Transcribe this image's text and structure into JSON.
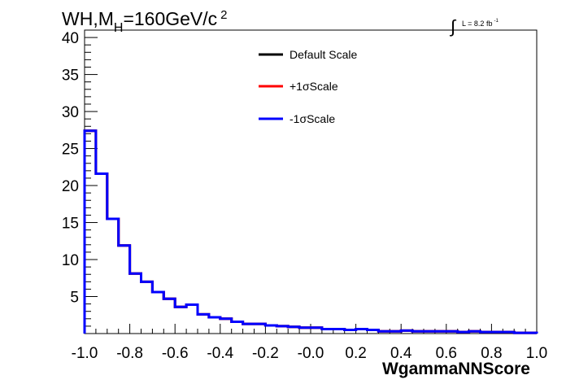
{
  "chart_data": {
    "type": "line",
    "title_main": "WH,M",
    "title_sub": "H",
    "title_rest": "=160GeV/c",
    "title_sup": "2",
    "lumi_prefix": "L = 8.2 fb",
    "lumi_sup": "-1",
    "xlabel": "WgammaNNScore",
    "xlim": [
      -1.0,
      1.0
    ],
    "ylim": [
      0,
      41
    ],
    "x_ticks": [
      {
        "value": -1.0,
        "label": "-1.0"
      },
      {
        "value": -0.8,
        "label": "-0.8"
      },
      {
        "value": -0.6,
        "label": "-0.6"
      },
      {
        "value": -0.4,
        "label": "-0.4"
      },
      {
        "value": -0.2,
        "label": "-0.2"
      },
      {
        "value": 0.0,
        "label": "-0.0"
      },
      {
        "value": 0.2,
        "label": "0.2"
      },
      {
        "value": 0.4,
        "label": "0.4"
      },
      {
        "value": 0.6,
        "label": "0.6"
      },
      {
        "value": 0.8,
        "label": "0.8"
      },
      {
        "value": 1.0,
        "label": "1.0"
      }
    ],
    "y_ticks": [
      {
        "value": 5,
        "label": "5"
      },
      {
        "value": 10,
        "label": "10"
      },
      {
        "value": 15,
        "label": "15"
      },
      {
        "value": 20,
        "label": "20"
      },
      {
        "value": 25,
        "label": "25"
      },
      {
        "value": 30,
        "label": "30"
      },
      {
        "value": 35,
        "label": "35"
      },
      {
        "value": 40,
        "label": "40"
      }
    ],
    "bin_edges": [
      -1.0,
      -0.95,
      -0.9,
      -0.85,
      -0.8,
      -0.75,
      -0.7,
      -0.65,
      -0.6,
      -0.55,
      -0.5,
      -0.45,
      -0.4,
      -0.35,
      -0.3,
      -0.25,
      -0.2,
      -0.15,
      -0.1,
      -0.05,
      0.0,
      0.05,
      0.1,
      0.15,
      0.2,
      0.25,
      0.3,
      0.35,
      0.4,
      0.45,
      0.5,
      0.55,
      0.6,
      0.65,
      0.7,
      0.75,
      0.8,
      0.85,
      0.9,
      0.95,
      1.0
    ],
    "series": [
      {
        "name": "Default Scale",
        "color": "#000000",
        "values": [
          27.4,
          21.6,
          15.5,
          11.9,
          8.1,
          7.0,
          5.6,
          4.7,
          3.6,
          3.9,
          2.6,
          2.2,
          2.0,
          1.6,
          1.3,
          1.3,
          1.1,
          1.0,
          0.9,
          0.8,
          0.8,
          0.6,
          0.6,
          0.5,
          0.6,
          0.5,
          0.3,
          0.3,
          0.4,
          0.3,
          0.3,
          0.3,
          0.3,
          0.2,
          0.3,
          0.2,
          0.2,
          0.2,
          0.1,
          0.1
        ]
      },
      {
        "name": "+1σScale",
        "color": "#ff0000",
        "values": [
          27.4,
          21.6,
          15.5,
          11.9,
          8.1,
          7.0,
          5.6,
          4.7,
          3.6,
          3.9,
          2.6,
          2.2,
          2.0,
          1.6,
          1.3,
          1.3,
          1.1,
          1.0,
          0.9,
          0.8,
          0.8,
          0.6,
          0.6,
          0.5,
          0.6,
          0.5,
          0.3,
          0.3,
          0.4,
          0.3,
          0.3,
          0.3,
          0.3,
          0.2,
          0.3,
          0.2,
          0.2,
          0.2,
          0.1,
          0.1
        ]
      },
      {
        "name": "-1σScale",
        "color": "#0000ff",
        "values": [
          27.4,
          21.6,
          15.5,
          11.9,
          8.1,
          7.0,
          5.6,
          4.7,
          3.6,
          3.9,
          2.6,
          2.2,
          2.0,
          1.6,
          1.3,
          1.3,
          1.1,
          1.0,
          0.9,
          0.8,
          0.8,
          0.6,
          0.6,
          0.5,
          0.6,
          0.5,
          0.3,
          0.3,
          0.4,
          0.3,
          0.3,
          0.3,
          0.3,
          0.2,
          0.3,
          0.2,
          0.2,
          0.2,
          0.1,
          0.1
        ]
      }
    ],
    "legend_position": "top-center",
    "grid": false
  }
}
